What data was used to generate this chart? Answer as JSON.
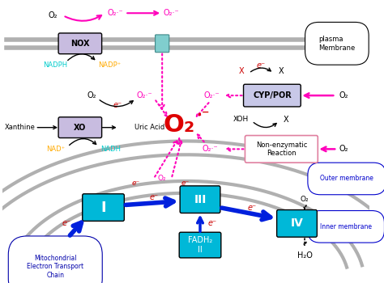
{
  "bg_color": "#ffffff",
  "membrane_color": "#b0b0b0",
  "box_color_nox_xo": "#c8bce0",
  "box_color_cyp": "#c8c8e8",
  "box_color_nonenz": "#ffffff",
  "box_color_nonenz_edge": "#e080a0",
  "channel_color": "#80cece",
  "complex_color": "#00b8d8",
  "arrow_blue": "#0020dd",
  "arrow_pink": "#ff00bb",
  "pink_dotted": "#ff00bb",
  "e_color": "#cc0000",
  "superoxide_color": "#ff00bb",
  "red_color": "#dd0000",
  "nadph_color": "#00cccc",
  "nadp_color": "#ffaa00",
  "nad_color": "#ffaa00",
  "nadh_color": "#00cccc",
  "outer_mem_label_color": "#0000cc",
  "inner_mem_label_color": "#0000cc",
  "plasma_label": "plasma\nMembrane",
  "outer_membrane_label": "Outer membrane",
  "inner_membrane_label": "Inner membrane",
  "mito_label": "Mitochondrial\nElectron Transport\nChain"
}
